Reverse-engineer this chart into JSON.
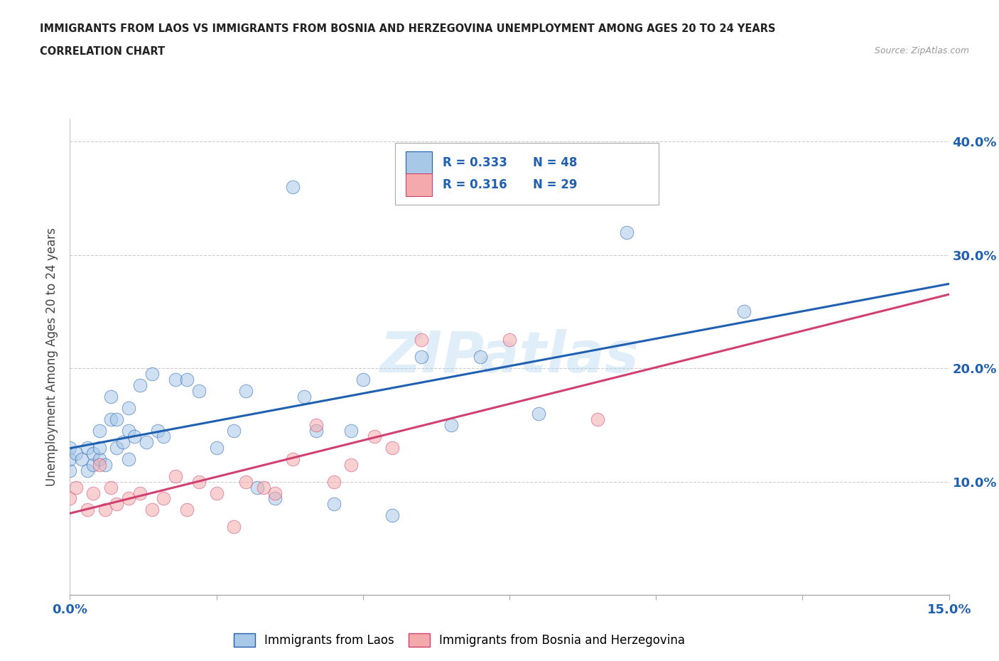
{
  "title_line1": "IMMIGRANTS FROM LAOS VS IMMIGRANTS FROM BOSNIA AND HERZEGOVINA UNEMPLOYMENT AMONG AGES 20 TO 24 YEARS",
  "title_line2": "CORRELATION CHART",
  "source": "Source: ZipAtlas.com",
  "ylabel": "Unemployment Among Ages 20 to 24 years",
  "xlim": [
    0.0,
    0.15
  ],
  "ylim": [
    0.0,
    0.42
  ],
  "xticks": [
    0.0,
    0.025,
    0.05,
    0.075,
    0.1,
    0.125,
    0.15
  ],
  "xtick_labels": [
    "0.0%",
    "",
    "",
    "",
    "",
    "",
    "15.0%"
  ],
  "yticks": [
    0.0,
    0.1,
    0.2,
    0.3,
    0.4
  ],
  "ytick_labels": [
    "",
    "10.0%",
    "20.0%",
    "30.0%",
    "40.0%"
  ],
  "color_laos": "#a8c8e8",
  "color_bosnia": "#f4aaaa",
  "color_line_laos": "#2060b0",
  "color_line_bosnia": "#d04070",
  "watermark": "ZIPatlas",
  "legend_r_laos": "R = 0.333",
  "legend_n_laos": "N = 48",
  "legend_r_bosnia": "R = 0.316",
  "legend_n_bosnia": "N = 29",
  "legend_text_color": "#2060b0",
  "laos_x": [
    0.0,
    0.0,
    0.0,
    0.001,
    0.002,
    0.003,
    0.003,
    0.004,
    0.004,
    0.005,
    0.005,
    0.005,
    0.006,
    0.007,
    0.007,
    0.008,
    0.008,
    0.009,
    0.01,
    0.01,
    0.01,
    0.011,
    0.012,
    0.013,
    0.014,
    0.015,
    0.016,
    0.018,
    0.02,
    0.022,
    0.025,
    0.028,
    0.03,
    0.032,
    0.035,
    0.038,
    0.04,
    0.042,
    0.045,
    0.048,
    0.05,
    0.055,
    0.06,
    0.065,
    0.07,
    0.08,
    0.095,
    0.115
  ],
  "laos_y": [
    0.11,
    0.12,
    0.13,
    0.125,
    0.12,
    0.11,
    0.13,
    0.115,
    0.125,
    0.12,
    0.13,
    0.145,
    0.115,
    0.155,
    0.175,
    0.13,
    0.155,
    0.135,
    0.12,
    0.145,
    0.165,
    0.14,
    0.185,
    0.135,
    0.195,
    0.145,
    0.14,
    0.19,
    0.19,
    0.18,
    0.13,
    0.145,
    0.18,
    0.095,
    0.085,
    0.36,
    0.175,
    0.145,
    0.08,
    0.145,
    0.19,
    0.07,
    0.21,
    0.15,
    0.21,
    0.16,
    0.32,
    0.25
  ],
  "bosnia_x": [
    0.0,
    0.001,
    0.003,
    0.004,
    0.005,
    0.006,
    0.007,
    0.008,
    0.01,
    0.012,
    0.014,
    0.016,
    0.018,
    0.02,
    0.022,
    0.025,
    0.028,
    0.03,
    0.033,
    0.035,
    0.038,
    0.042,
    0.045,
    0.048,
    0.052,
    0.055,
    0.06,
    0.075,
    0.09
  ],
  "bosnia_y": [
    0.085,
    0.095,
    0.075,
    0.09,
    0.115,
    0.075,
    0.095,
    0.08,
    0.085,
    0.09,
    0.075,
    0.085,
    0.105,
    0.075,
    0.1,
    0.09,
    0.06,
    0.1,
    0.095,
    0.09,
    0.12,
    0.15,
    0.1,
    0.115,
    0.14,
    0.13,
    0.225,
    0.225,
    0.155
  ]
}
